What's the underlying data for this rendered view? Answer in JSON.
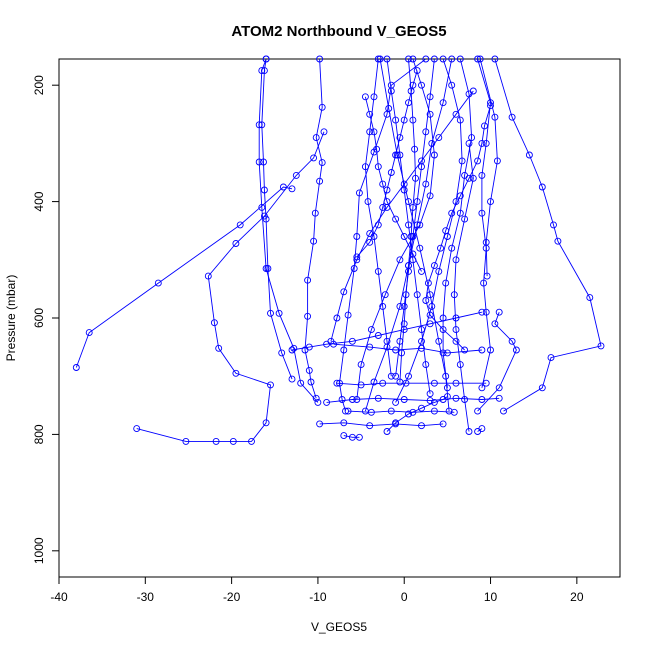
{
  "chart_data": {
    "type": "line",
    "title": "ATOM2 Northbound V_GEOS5",
    "xlabel": "V_GEOS5",
    "ylabel": "Pressure (mbar)",
    "xlim": [
      -40,
      25
    ],
    "ylim": [
      1045,
      155
    ],
    "y_reversed": true,
    "x_ticks": [
      -40,
      -30,
      -20,
      -10,
      0,
      10,
      20
    ],
    "y_ticks": [
      200,
      400,
      600,
      800,
      1000
    ],
    "grid": false,
    "legend": "none",
    "color": "#0000ff",
    "marker": "open-circle",
    "series": [
      {
        "points": [
          [
            -38,
            685
          ],
          [
            -36.5,
            625
          ],
          [
            -28.5,
            540
          ],
          [
            -19,
            440
          ],
          [
            -14,
            375
          ],
          [
            -13,
            378
          ]
        ]
      },
      {
        "points": [
          [
            -31,
            790
          ],
          [
            -25.3,
            812
          ],
          [
            -21.8,
            812
          ],
          [
            -19.8,
            812
          ],
          [
            -17.7,
            812
          ],
          [
            -16,
            780
          ],
          [
            -15.5,
            715
          ],
          [
            -19.5,
            695
          ],
          [
            -21.5,
            652
          ],
          [
            -22,
            608
          ],
          [
            -22.7,
            528
          ],
          [
            -19.5,
            472
          ],
          [
            -16.2,
            425
          ],
          [
            -12.5,
            355
          ],
          [
            -10.5,
            325
          ],
          [
            -9.3,
            280
          ]
        ]
      },
      {
        "points": [
          [
            -16,
            155
          ],
          [
            -16.2,
            175
          ],
          [
            -16.5,
            268
          ],
          [
            -16.3,
            332
          ],
          [
            -16.2,
            380
          ],
          [
            -16,
            430
          ],
          [
            -15.8,
            515
          ],
          [
            -15.5,
            592
          ],
          [
            -14.2,
            660
          ],
          [
            -13,
            705
          ]
        ]
      },
      {
        "points": [
          [
            -9.8,
            155
          ],
          [
            -9.5,
            238
          ],
          [
            -10.2,
            290
          ],
          [
            -9.5,
            333
          ],
          [
            -9.8,
            365
          ],
          [
            -10.3,
            420
          ],
          [
            -10.5,
            468
          ],
          [
            -11.2,
            535
          ],
          [
            -11.2,
            597
          ],
          [
            -11.5,
            655
          ],
          [
            -11,
            690
          ],
          [
            -10.8,
            710
          ],
          [
            -10.2,
            738
          ]
        ]
      },
      {
        "points": [
          [
            -16,
            155
          ],
          [
            -16.5,
            175
          ],
          [
            -16.8,
            268
          ],
          [
            -16.8,
            332
          ],
          [
            -16.5,
            410
          ],
          [
            -16,
            515
          ],
          [
            -14.5,
            592
          ],
          [
            -12.8,
            652
          ],
          [
            -12,
            712
          ],
          [
            -10,
            745
          ]
        ]
      },
      {
        "points": [
          [
            2.5,
            155
          ],
          [
            -1.5,
            200
          ],
          [
            -2,
            250
          ],
          [
            -3.5,
            315
          ],
          [
            -5.2,
            385
          ],
          [
            -5.5,
            460
          ],
          [
            -5.8,
            515
          ],
          [
            -6.5,
            595
          ],
          [
            -7,
            655
          ],
          [
            -7.5,
            712
          ],
          [
            -7.2,
            740
          ],
          [
            -6.8,
            760
          ]
        ]
      },
      {
        "points": [
          [
            -8.2,
            645
          ],
          [
            -4,
            650
          ],
          [
            -1,
            655
          ],
          [
            2,
            652
          ],
          [
            5,
            660
          ],
          [
            9,
            655
          ]
        ]
      },
      {
        "points": [
          [
            -7.8,
            712
          ],
          [
            -5,
            715
          ],
          [
            -2.5,
            712
          ],
          [
            0.2,
            712
          ],
          [
            3.5,
            712
          ],
          [
            6,
            712
          ],
          [
            9.5,
            712
          ]
        ]
      },
      {
        "points": [
          [
            -9,
            745
          ],
          [
            -6,
            740
          ],
          [
            -3,
            738
          ],
          [
            0,
            740
          ],
          [
            3,
            742
          ],
          [
            6,
            738
          ],
          [
            9,
            740
          ],
          [
            11,
            738
          ]
        ]
      },
      {
        "points": [
          [
            -9.8,
            782
          ],
          [
            -7,
            780
          ],
          [
            -4,
            785
          ],
          [
            -1,
            782
          ],
          [
            2,
            785
          ],
          [
            4.5,
            782
          ]
        ]
      },
      {
        "points": [
          [
            -7,
            802
          ],
          [
            -6,
            805
          ],
          [
            -5.2,
            805
          ]
        ]
      },
      {
        "points": [
          [
            -6.5,
            760
          ],
          [
            -3.8,
            762
          ],
          [
            -1.5,
            760
          ],
          [
            1,
            762
          ],
          [
            3.5,
            760
          ],
          [
            5.8,
            762
          ]
        ]
      },
      {
        "points": [
          [
            1,
            155
          ],
          [
            2,
            200
          ],
          [
            3,
            250
          ],
          [
            3.5,
            320
          ],
          [
            3,
            390
          ],
          [
            1.8,
            440
          ],
          [
            -0.5,
            500
          ],
          [
            -2.2,
            560
          ],
          [
            -3.8,
            620
          ],
          [
            -5,
            680
          ],
          [
            -5.5,
            740
          ]
        ]
      },
      {
        "points": [
          [
            4.5,
            155
          ],
          [
            5.5,
            200
          ],
          [
            6.5,
            260
          ],
          [
            6.7,
            330
          ],
          [
            6,
            400
          ],
          [
            5,
            460
          ],
          [
            4,
            520
          ],
          [
            3.2,
            580
          ],
          [
            2,
            640
          ],
          [
            0.5,
            700
          ],
          [
            -1,
            745
          ]
        ]
      },
      {
        "points": [
          [
            6.5,
            155
          ],
          [
            7.5,
            215
          ],
          [
            7.8,
            290
          ],
          [
            7,
            355
          ],
          [
            6.5,
            420
          ],
          [
            5.5,
            480
          ],
          [
            4.8,
            540
          ],
          [
            4.5,
            600
          ],
          [
            4.5,
            660
          ],
          [
            5,
            720
          ]
        ]
      },
      {
        "points": [
          [
            8.5,
            155
          ],
          [
            10,
            230
          ],
          [
            9.5,
            300
          ],
          [
            9,
            355
          ],
          [
            9,
            420
          ],
          [
            9.5,
            480
          ],
          [
            9.2,
            540
          ],
          [
            9.5,
            590
          ],
          [
            10,
            655
          ],
          [
            9,
            720
          ]
        ]
      },
      {
        "points": [
          [
            8.8,
            155
          ],
          [
            10.5,
            255
          ],
          [
            10.8,
            330
          ],
          [
            10,
            400
          ],
          [
            9.5,
            470
          ],
          [
            9.6,
            528
          ]
        ]
      },
      {
        "points": [
          [
            10.5,
            155
          ],
          [
            12.5,
            255
          ],
          [
            14.5,
            320
          ],
          [
            16,
            375
          ],
          [
            17.3,
            440
          ],
          [
            17.8,
            468
          ],
          [
            21.5,
            565
          ],
          [
            22.8,
            648
          ],
          [
            17,
            668
          ],
          [
            16,
            720
          ],
          [
            11.5,
            760
          ]
        ]
      },
      {
        "points": [
          [
            7.5,
            300
          ],
          [
            8,
            360
          ],
          [
            7,
            430
          ],
          [
            6,
            500
          ],
          [
            5.8,
            560
          ],
          [
            6,
            620
          ],
          [
            6.5,
            680
          ],
          [
            7,
            740
          ],
          [
            7.5,
            795
          ]
        ]
      },
      {
        "points": [
          [
            0.5,
            155
          ],
          [
            0.8,
            210
          ],
          [
            1,
            260
          ],
          [
            1.2,
            310
          ],
          [
            1.3,
            360
          ],
          [
            1,
            410
          ],
          [
            0.8,
            460
          ],
          [
            0.5,
            510
          ],
          [
            0.2,
            560
          ],
          [
            0,
            610
          ],
          [
            -0.3,
            660
          ],
          [
            -0.5,
            710
          ]
        ]
      },
      {
        "points": [
          [
            -2,
            155
          ],
          [
            -1.5,
            210
          ],
          [
            -1,
            260
          ],
          [
            -0.5,
            320
          ],
          [
            0,
            380
          ],
          [
            0.5,
            440
          ],
          [
            1,
            500
          ],
          [
            1.5,
            560
          ],
          [
            2,
            620
          ],
          [
            2.5,
            680
          ],
          [
            3,
            730
          ]
        ]
      },
      {
        "points": [
          [
            3.5,
            155
          ],
          [
            3,
            220
          ],
          [
            2.5,
            280
          ],
          [
            2,
            340
          ],
          [
            1.5,
            400
          ],
          [
            1,
            460
          ],
          [
            0.5,
            520
          ],
          [
            0,
            580
          ],
          [
            -0.5,
            640
          ],
          [
            -1,
            700
          ]
        ]
      },
      {
        "points": [
          [
            -3,
            155
          ],
          [
            -3.5,
            220
          ],
          [
            -4,
            280
          ],
          [
            -4.5,
            340
          ],
          [
            -4.2,
            400
          ],
          [
            -3.5,
            460
          ],
          [
            -3,
            520
          ],
          [
            -2.5,
            580
          ],
          [
            -2,
            640
          ],
          [
            -1.5,
            700
          ]
        ]
      },
      {
        "points": [
          [
            5.5,
            155
          ],
          [
            4.5,
            230
          ],
          [
            3.2,
            300
          ],
          [
            2.5,
            370
          ],
          [
            1.5,
            440
          ],
          [
            0.5,
            510
          ],
          [
            -0.5,
            580
          ],
          [
            -2,
            650
          ],
          [
            -3.5,
            710
          ],
          [
            -4.5,
            760
          ]
        ]
      },
      {
        "points": [
          [
            -2.8,
            155
          ],
          [
            -1.8,
            240
          ],
          [
            -0.8,
            320
          ],
          [
            0.5,
            400
          ],
          [
            1.8,
            480
          ],
          [
            3,
            560
          ],
          [
            4,
            640
          ],
          [
            4.8,
            700
          ],
          [
            5.2,
            760
          ]
        ]
      },
      {
        "points": [
          [
            -8.5,
            640
          ],
          [
            -7.8,
            600
          ],
          [
            -7,
            555
          ],
          [
            -5.5,
            500
          ],
          [
            -4,
            455
          ],
          [
            -2,
            410
          ],
          [
            0,
            370
          ],
          [
            2,
            330
          ],
          [
            4,
            290
          ],
          [
            6,
            250
          ],
          [
            8,
            210
          ]
        ]
      },
      {
        "points": [
          [
            11,
            590
          ],
          [
            10.5,
            610
          ],
          [
            12.5,
            640
          ],
          [
            13,
            655
          ],
          [
            11,
            720
          ],
          [
            8.5,
            760
          ]
        ]
      },
      {
        "points": [
          [
            -13,
            655
          ],
          [
            -11,
            650
          ],
          [
            -9,
            645
          ],
          [
            -6,
            640
          ],
          [
            -3,
            630
          ],
          [
            0,
            620
          ],
          [
            3,
            610
          ],
          [
            6,
            600
          ],
          [
            9,
            590
          ]
        ]
      },
      {
        "points": [
          [
            7,
            655
          ],
          [
            6,
            640
          ],
          [
            4.5,
            620
          ],
          [
            3,
            595
          ],
          [
            2.5,
            570
          ],
          [
            2.8,
            540
          ],
          [
            3.5,
            510
          ],
          [
            4.2,
            480
          ],
          [
            4.8,
            450
          ],
          [
            5.5,
            420
          ],
          [
            6.5,
            390
          ],
          [
            7.5,
            360
          ],
          [
            8.5,
            330
          ],
          [
            9,
            300
          ],
          [
            9.3,
            270
          ],
          [
            10,
            235
          ]
        ]
      },
      {
        "points": [
          [
            -5.5,
            495
          ],
          [
            -4,
            470
          ],
          [
            -3,
            440
          ],
          [
            -2.5,
            410
          ],
          [
            -2,
            380
          ],
          [
            -1.5,
            350
          ],
          [
            -1,
            320
          ],
          [
            -0.5,
            290
          ],
          [
            0,
            260
          ],
          [
            0.5,
            230
          ],
          [
            1,
            200
          ],
          [
            1.5,
            175
          ]
        ]
      },
      {
        "points": [
          [
            2,
            520
          ],
          [
            1,
            490
          ],
          [
            0,
            460
          ],
          [
            -1,
            430
          ],
          [
            -2,
            400
          ],
          [
            -2.5,
            370
          ],
          [
            -3,
            340
          ],
          [
            -3.2,
            310
          ],
          [
            -3.5,
            280
          ],
          [
            -4,
            250
          ],
          [
            -4.5,
            220
          ]
        ]
      },
      {
        "points": [
          [
            -2,
            795
          ],
          [
            -1,
            780
          ],
          [
            0.5,
            765
          ],
          [
            2,
            755
          ],
          [
            3.5,
            745
          ],
          [
            4.5,
            740
          ],
          [
            5,
            735
          ]
        ]
      },
      {
        "points": [
          [
            8.5,
            795
          ],
          [
            9,
            790
          ]
        ]
      }
    ]
  }
}
